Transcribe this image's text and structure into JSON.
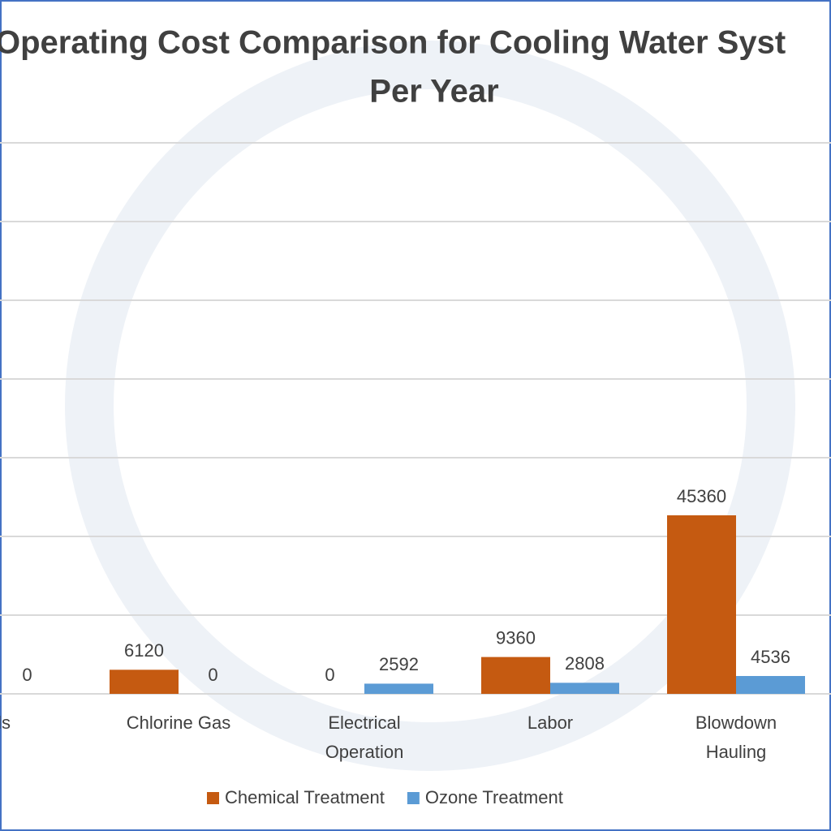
{
  "chart_data": {
    "type": "bar",
    "title": "Operating Cost Comparison for Cooling Water Syst",
    "subtitle": "Per Year",
    "categories": [
      "icals",
      "Chlorine Gas",
      "Electrical Operation",
      "Labor",
      "Blowdown Hauling"
    ],
    "series": [
      {
        "name": "Chemical Treatment",
        "color": "#c55a11",
        "values": [
          null,
          6120,
          0,
          9360,
          45360
        ]
      },
      {
        "name": "Ozone Treatment",
        "color": "#5b9bd5",
        "values": [
          0,
          0,
          2592,
          2808,
          4536
        ]
      }
    ],
    "ylim": [
      0,
      140000
    ],
    "yticks": [
      0,
      20000,
      40000,
      60000,
      80000,
      100000,
      120000,
      140000
    ],
    "grid": true,
    "legend": "bottom"
  }
}
